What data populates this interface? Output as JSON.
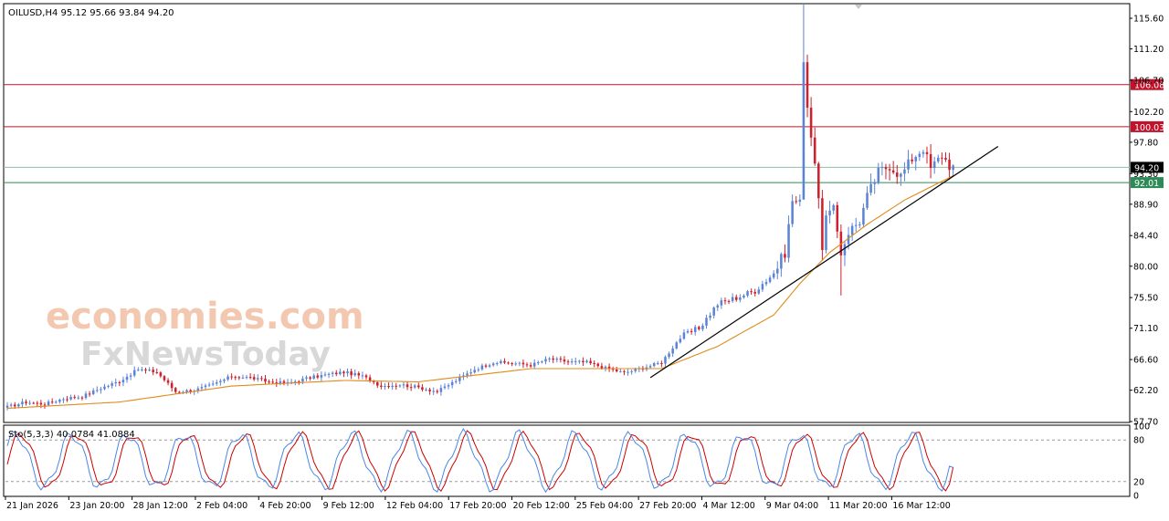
{
  "header": {
    "symbol_info": "OILUSD,H4  95.12 95.66 93.84 94.20"
  },
  "watermark": {
    "brand_top": "economies.com",
    "brand_bottom": "FxNewsToday"
  },
  "colors": {
    "bull": "#5b84d6",
    "bear": "#d0202c",
    "ma": "#e08a1a",
    "resistance": "#c0122a",
    "current": "#8fbfa3",
    "support": "#2e8b57",
    "trendline": "#000000",
    "stoch_main": "#4a86e8",
    "stoch_signal": "#cc0000"
  },
  "chart_data": [
    {
      "type": "candlestick",
      "symbol": "OILUSD",
      "timeframe": "H4",
      "ohlc_last": {
        "open": 95.12,
        "high": 95.66,
        "low": 93.84,
        "close": 94.2
      },
      "ylim": [
        57.7,
        117.7
      ],
      "y_ticks": [
        "115.60",
        "111.20",
        "106.70",
        "102.20",
        "97.80",
        "93.30",
        "88.90",
        "84.40",
        "80.00",
        "75.50",
        "71.10",
        "66.60",
        "62.20",
        "57.70"
      ],
      "x_ticks": [
        "21 Jan 2026",
        "23 Jan 20:00",
        "28 Jan 12:00",
        "2 Feb 04:00",
        "4 Feb 20:00",
        "9 Feb 12:00",
        "12 Feb 04:00",
        "17 Feb 20:00",
        "20 Feb 12:00",
        "25 Feb 04:00",
        "27 Feb 20:00",
        "4 Mar 12:00",
        "9 Mar 04:00",
        "11 Mar 20:00",
        "16 Mar 12:00"
      ],
      "price_levels": [
        {
          "value": 106.08,
          "label": "106.08",
          "role": "resistance"
        },
        {
          "value": 100.03,
          "label": "100.03",
          "role": "resistance"
        },
        {
          "value": 94.2,
          "label": "94.20",
          "role": "current"
        },
        {
          "value": 92.01,
          "label": "92.01",
          "role": "support"
        }
      ],
      "close_path": [
        [
          0,
          59.8
        ],
        [
          5,
          60.5
        ],
        [
          10,
          60.2
        ],
        [
          15,
          61.0
        ],
        [
          20,
          61.3
        ],
        [
          25,
          62.5
        ],
        [
          30,
          63.5
        ],
        [
          35,
          65.2
        ],
        [
          40,
          64.8
        ],
        [
          45,
          62.0
        ],
        [
          50,
          62.2
        ],
        [
          55,
          63.0
        ],
        [
          60,
          64.2
        ],
        [
          65,
          64.0
        ],
        [
          70,
          63.4
        ],
        [
          75,
          63.2
        ],
        [
          80,
          63.9
        ],
        [
          85,
          64.4
        ],
        [
          90,
          64.8
        ],
        [
          95,
          64.2
        ],
        [
          100,
          62.8
        ],
        [
          105,
          63.0
        ],
        [
          110,
          62.6
        ],
        [
          115,
          62.0
        ],
        [
          120,
          63.6
        ],
        [
          125,
          65.2
        ],
        [
          130,
          66.2
        ],
        [
          135,
          66.1
        ],
        [
          140,
          65.8
        ],
        [
          145,
          66.7
        ],
        [
          150,
          66.3
        ],
        [
          155,
          66.2
        ],
        [
          160,
          65.4
        ],
        [
          165,
          64.7
        ],
        [
          170,
          65.4
        ],
        [
          175,
          66.2
        ],
        [
          180,
          69.8
        ],
        [
          185,
          71.1
        ],
        [
          190,
          74.6
        ],
        [
          195,
          75.5
        ],
        [
          200,
          76.5
        ],
        [
          205,
          79.0
        ],
        [
          208,
          82.0
        ],
        [
          210,
          89.5
        ],
        [
          212,
          89.0
        ],
        [
          213,
          110.0
        ],
        [
          214,
          103.0
        ],
        [
          216,
          95.0
        ],
        [
          218,
          83.0
        ],
        [
          219,
          87.0
        ],
        [
          221,
          88.0
        ],
        [
          223,
          82.0
        ],
        [
          225,
          85.0
        ],
        [
          228,
          86.5
        ],
        [
          230,
          90.0
        ],
        [
          233,
          93.5
        ],
        [
          236,
          94.5
        ],
        [
          239,
          93.0
        ],
        [
          242,
          95.5
        ],
        [
          245,
          97.0
        ],
        [
          247,
          94.0
        ],
        [
          250,
          96.0
        ],
        [
          252,
          94.5
        ],
        [
          253,
          94.2
        ]
      ],
      "ma_path": [
        [
          0,
          59.6
        ],
        [
          30,
          60.5
        ],
        [
          60,
          62.8
        ],
        [
          90,
          63.6
        ],
        [
          110,
          63.4
        ],
        [
          140,
          65.3
        ],
        [
          175,
          65.3
        ],
        [
          190,
          68.5
        ],
        [
          205,
          73.0
        ],
        [
          212,
          77.5
        ],
        [
          220,
          82.0
        ],
        [
          230,
          86.0
        ],
        [
          240,
          89.5
        ],
        [
          253,
          93.0
        ]
      ],
      "trendline": [
        [
          172,
          64.0
        ],
        [
          265,
          97.2
        ]
      ],
      "wick_extremes": [
        {
          "index": 213,
          "high": 117.7,
          "low": 103.0
        },
        {
          "index": 223,
          "high": 86.0,
          "low": 75.8
        }
      ]
    },
    {
      "type": "line",
      "title": "Sto(5,3,3) 40.0784 41.0884",
      "indicator": "Stochastic",
      "params": [
        5,
        3,
        3
      ],
      "values": {
        "main": 40.0784,
        "signal": 41.0884
      },
      "ylim": [
        0,
        100
      ],
      "y_ticks": [
        "100",
        "80",
        "20",
        "0"
      ],
      "levels": [
        20,
        80
      ]
    }
  ]
}
